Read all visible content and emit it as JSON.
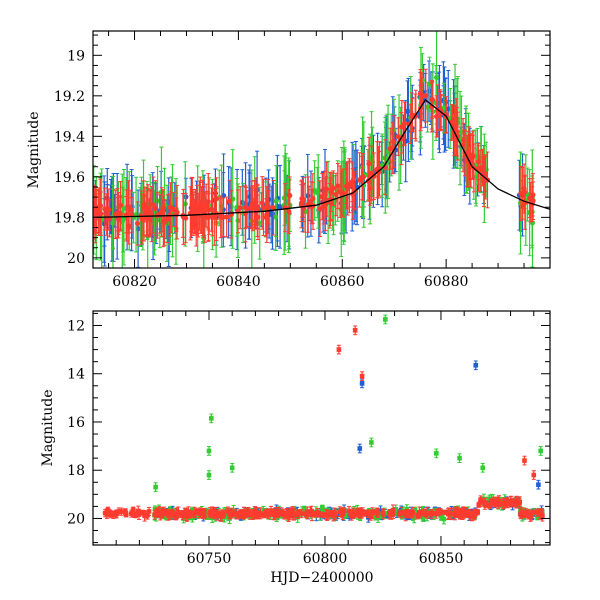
{
  "chart_data": [
    {
      "type": "scatter",
      "title": "",
      "xlabel": "",
      "ylabel": "Magnitude",
      "xlim": [
        60812,
        60900
      ],
      "ylim": [
        20.05,
        18.88
      ],
      "y_inverted": true,
      "xticks": [
        60820,
        60840,
        60860,
        60880
      ],
      "yticks": [
        19,
        19.2,
        19.4,
        19.6,
        19.8,
        20
      ],
      "ytick_labels": [
        "19",
        "19.2",
        "19.4",
        "19.6",
        "19.8",
        "20"
      ],
      "xtick_labels": [
        "60820",
        "60840",
        "60860",
        "60880"
      ],
      "grid": false,
      "error_bars": true,
      "series": [
        {
          "color": "#1f5fd6",
          "marker": "circle"
        },
        {
          "color": "#33cc33",
          "marker": "circle"
        },
        {
          "color": "#ff3b2f",
          "marker": "circle"
        }
      ],
      "model_curve": {
        "color": "#000000",
        "x": [
          60812,
          60830,
          60845,
          60855,
          60862,
          60868,
          60872,
          60876,
          60880,
          60885,
          60890,
          60895,
          60900
        ],
        "y": [
          19.8,
          19.79,
          19.77,
          19.74,
          19.68,
          19.55,
          19.38,
          19.22,
          19.3,
          19.55,
          19.66,
          19.72,
          19.76
        ]
      }
    },
    {
      "type": "scatter",
      "title": "",
      "xlabel": "HJD−2400000",
      "ylabel": "Magnitude",
      "xlim": [
        60700,
        60897
      ],
      "ylim": [
        21.1,
        11.4
      ],
      "y_inverted": true,
      "xticks": [
        60750,
        60800,
        60850
      ],
      "yticks": [
        12,
        14,
        16,
        18,
        20
      ],
      "ytick_labels": [
        "12",
        "14",
        "16",
        "18",
        "20"
      ],
      "xtick_labels": [
        "60750",
        "60800",
        "60850"
      ],
      "grid": false,
      "error_bars": true,
      "series": [
        {
          "color": "#1f5fd6",
          "marker": "square"
        },
        {
          "color": "#33cc33",
          "marker": "square"
        },
        {
          "color": "#ff3b2f",
          "marker": "square"
        }
      ],
      "outliers": [
        {
          "series": 2,
          "x": 60806,
          "y": 13.0
        },
        {
          "series": 2,
          "x": 60813,
          "y": 12.2
        },
        {
          "series": 1,
          "x": 60826,
          "y": 11.75
        },
        {
          "series": 2,
          "x": 60816,
          "y": 14.1
        },
        {
          "series": 0,
          "x": 60816,
          "y": 14.4
        },
        {
          "series": 0,
          "x": 60865,
          "y": 13.65
        },
        {
          "series": 1,
          "x": 60751,
          "y": 15.85
        },
        {
          "series": 1,
          "x": 60750,
          "y": 17.2
        },
        {
          "series": 1,
          "x": 60750,
          "y": 18.2
        },
        {
          "series": 1,
          "x": 60760,
          "y": 17.9
        },
        {
          "series": 0,
          "x": 60815,
          "y": 17.1
        },
        {
          "series": 1,
          "x": 60820,
          "y": 16.85
        },
        {
          "series": 1,
          "x": 60848,
          "y": 17.3
        },
        {
          "series": 1,
          "x": 60858,
          "y": 17.5
        },
        {
          "series": 1,
          "x": 60868,
          "y": 17.9
        },
        {
          "series": 2,
          "x": 60886,
          "y": 17.6
        },
        {
          "series": 1,
          "x": 60893,
          "y": 17.2
        },
        {
          "series": 2,
          "x": 60890,
          "y": 18.2
        },
        {
          "series": 1,
          "x": 60727,
          "y": 18.7
        },
        {
          "series": 0,
          "x": 60892,
          "y": 18.6
        }
      ]
    }
  ]
}
